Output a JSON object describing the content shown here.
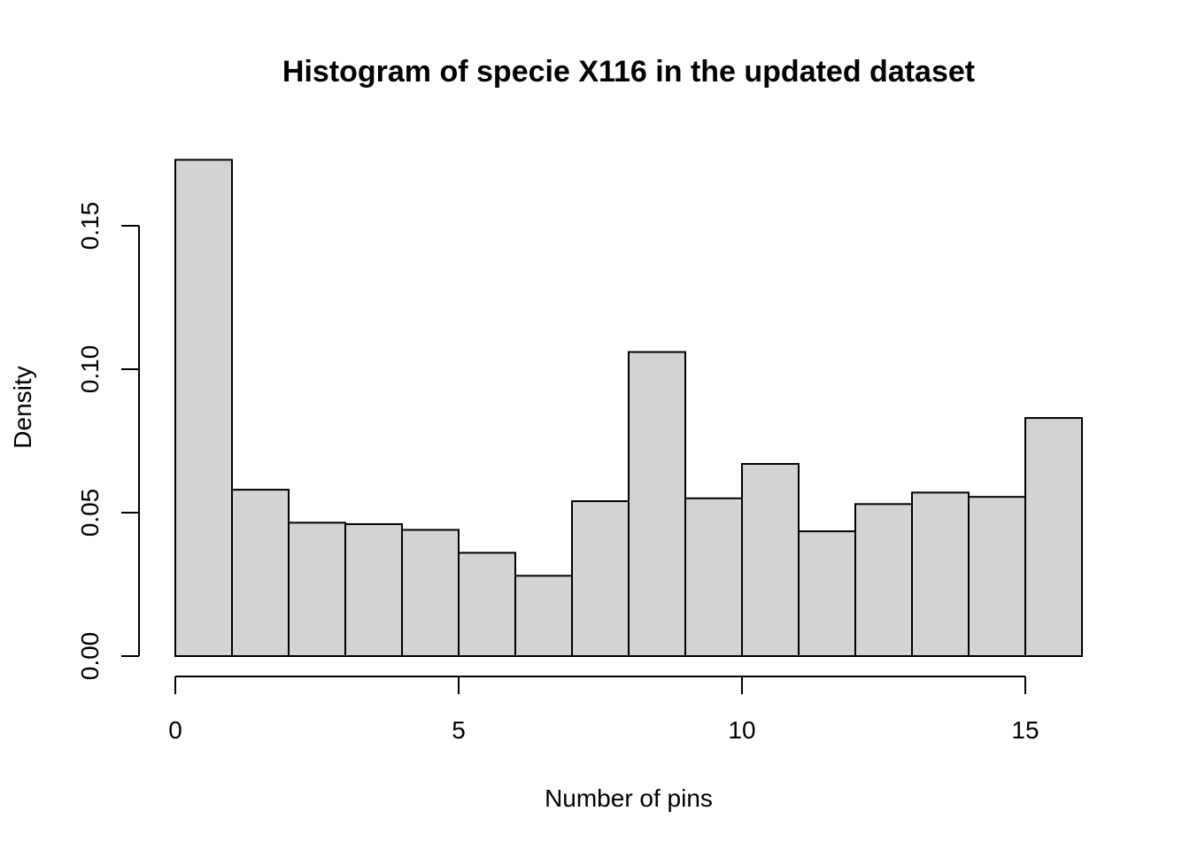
{
  "chart_data": {
    "type": "bar",
    "title": "Histogram of specie X116 in the updated dataset",
    "xlabel": "Number of pins",
    "ylabel": "Density",
    "bin_edges": [
      0,
      1,
      2,
      3,
      4,
      5,
      6,
      7,
      8,
      9,
      10,
      11,
      12,
      13,
      14,
      15,
      16
    ],
    "values": [
      0.173,
      0.058,
      0.0465,
      0.046,
      0.044,
      0.036,
      0.028,
      0.054,
      0.106,
      0.055,
      0.067,
      0.0435,
      0.053,
      0.057,
      0.0555,
      0.083
    ],
    "x_ticks": [
      0,
      5,
      10,
      15
    ],
    "x_tick_labels": [
      "0",
      "5",
      "10",
      "15"
    ],
    "y_ticks": [
      0.0,
      0.05,
      0.1,
      0.15
    ],
    "y_tick_labels": [
      "0.00",
      "0.05",
      "0.10",
      "0.15"
    ],
    "xlim": [
      0,
      16
    ],
    "ylim": [
      0,
      0.15
    ],
    "bar_fill": "#d3d3d3",
    "bar_stroke": "#000000",
    "grid": false,
    "legend": "none"
  }
}
